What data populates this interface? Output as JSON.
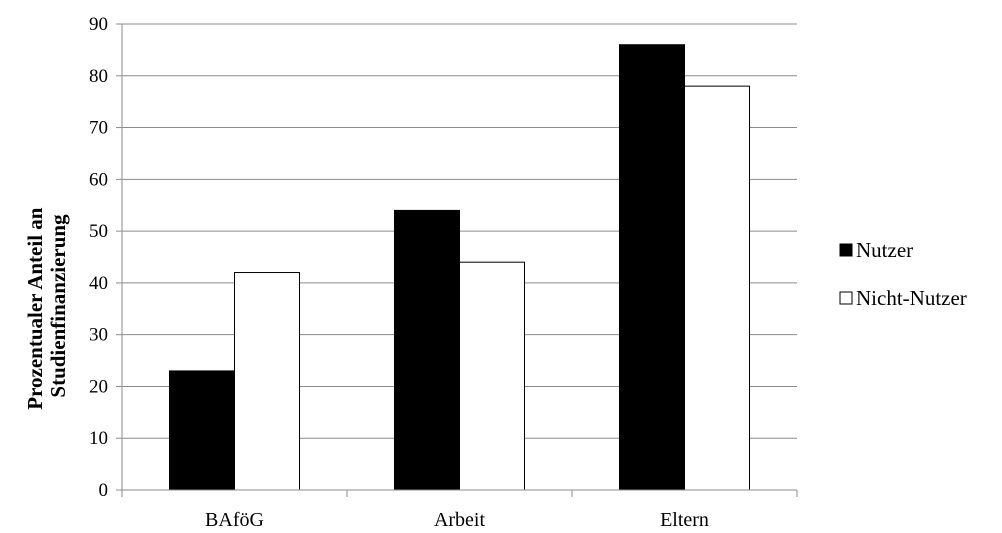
{
  "chart_data": {
    "type": "bar",
    "title": "",
    "xlabel": "",
    "ylabel_lines": [
      "Prozentualer Anteil an",
      "Studienfinanzierung"
    ],
    "categories": [
      "BAföG",
      "Arbeit",
      "Eltern"
    ],
    "series": [
      {
        "name": "Nutzer",
        "values": [
          23,
          54,
          86
        ],
        "color": "#000000"
      },
      {
        "name": "Nicht-Nutzer",
        "values": [
          42,
          44,
          78
        ],
        "color": "#ffffff"
      }
    ],
    "ylim": [
      0,
      90
    ],
    "yticks": [
      0,
      10,
      20,
      30,
      40,
      50,
      60,
      70,
      80,
      90
    ],
    "grid": true,
    "legend_position": "right"
  }
}
